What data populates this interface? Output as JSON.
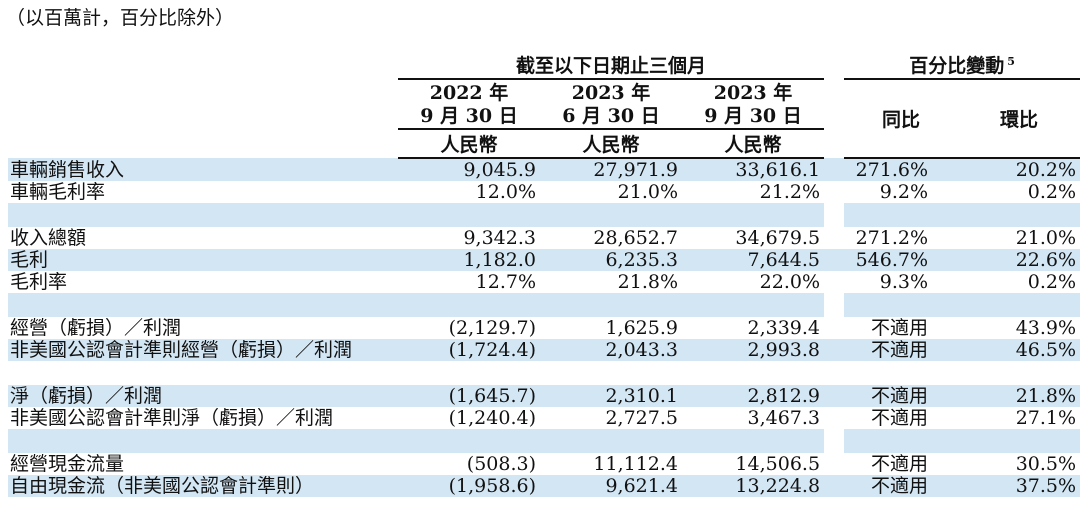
{
  "note": "（以百萬計，百分比除外）",
  "header": {
    "period_group": "截至以下日期止三個月",
    "change_group": "百分比變動",
    "change_footnote": "5",
    "columns": [
      {
        "year": "2022 年",
        "date": "9 月 30 日",
        "currency": "人民幣"
      },
      {
        "year": "2023 年",
        "date": "6 月 30 日",
        "currency": "人民幣"
      },
      {
        "year": "2023 年",
        "date": "9 月 30 日",
        "currency": "人民幣"
      }
    ],
    "yoy": "同比",
    "qoq": "環比"
  },
  "rows": [
    {
      "label": "車輛銷售收入",
      "values": [
        "9,045.9",
        "27,971.9",
        "33,616.1",
        "271.6%",
        "20.2%"
      ]
    },
    {
      "label": "車輛毛利率",
      "values": [
        "12.0%",
        "21.0%",
        "21.2%",
        "9.2%",
        "0.2%"
      ]
    },
    {
      "label": "收入總額",
      "values": [
        "9,342.3",
        "28,652.7",
        "34,679.5",
        "271.2%",
        "21.0%"
      ]
    },
    {
      "label": "毛利",
      "values": [
        "1,182.0",
        "6,235.3",
        "7,644.5",
        "546.7%",
        "22.6%"
      ]
    },
    {
      "label": "毛利率",
      "values": [
        "12.7%",
        "21.8%",
        "22.0%",
        "9.3%",
        "0.2%"
      ]
    },
    {
      "label": "經營（虧損）／利潤",
      "values": [
        "(2,129.7)",
        "1,625.9",
        "2,339.4",
        "不適用",
        "43.9%"
      ]
    },
    {
      "label": "非美國公認會計準則經營（虧損）／利潤",
      "values": [
        "(1,724.4)",
        "2,043.3",
        "2,993.8",
        "不適用",
        "46.5%"
      ]
    },
    {
      "label": "淨（虧損）／利潤",
      "values": [
        "(1,645.7)",
        "2,310.1",
        "2,812.9",
        "不適用",
        "21.8%"
      ]
    },
    {
      "label": "非美國公認會計準則淨（虧損）／利潤",
      "values": [
        "(1,240.4)",
        "2,727.5",
        "3,467.3",
        "不適用",
        "27.1%"
      ]
    },
    {
      "label": "經營現金流量",
      "values": [
        "(508.3)",
        "11,112.4",
        "14,506.5",
        "不適用",
        "30.5%"
      ]
    },
    {
      "label": "自由現金流（非美國公認會計準則）",
      "values": [
        "(1,958.6)",
        "9,621.4",
        "13,224.8",
        "不適用",
        "37.5%"
      ]
    }
  ],
  "colors": {
    "row_shade": "#d3e6f4"
  }
}
